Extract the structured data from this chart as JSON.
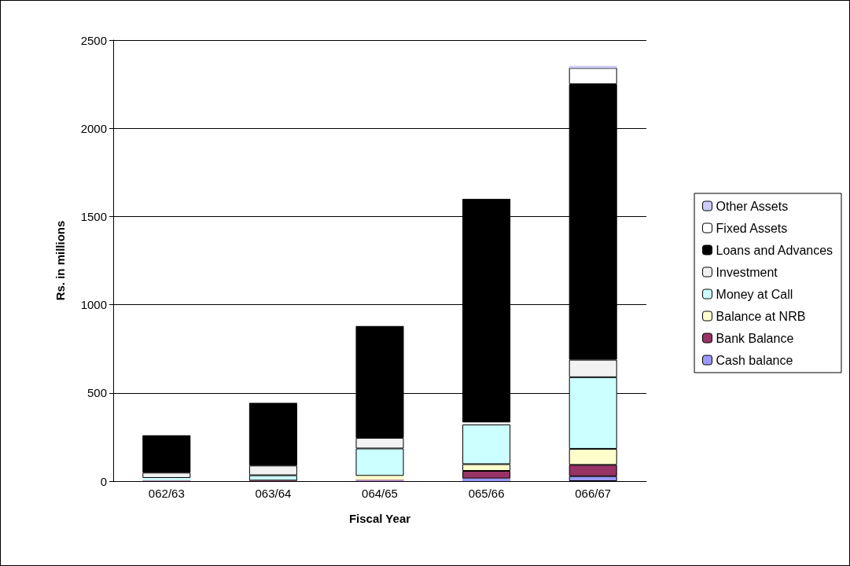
{
  "chart_data": {
    "type": "bar",
    "stacked": true,
    "xlabel": "Fiscal Year",
    "ylabel": "Rs. in millions",
    "categories": [
      "062/63",
      "063/64",
      "064/65",
      "065/66",
      "066/67"
    ],
    "series": [
      {
        "name": "Cash balance",
        "color": "#9999ff",
        "values": [
          null,
          null,
          3,
          15,
          28
        ]
      },
      {
        "name": "Bank Balance",
        "color": "#993366",
        "values": [
          3,
          3,
          5,
          43,
          64
        ]
      },
      {
        "name": "Balance at NRB",
        "color": "#ffffcc",
        "values": [
          null,
          null,
          22,
          38,
          91
        ]
      },
      {
        "name": "Money at Call",
        "color": "#ccffff",
        "values": [
          15,
          30,
          155,
          225,
          406
        ]
      },
      {
        "name": "Investment",
        "color": "#f2f2f2",
        "values": [
          30,
          55,
          60,
          12,
          99
        ]
      },
      {
        "name": "Loans and Advances",
        "color": "#000000",
        "values": [
          213,
          356,
          635,
          1268,
          1562
        ]
      },
      {
        "name": "Fixed Assets",
        "color": "#ffffff",
        "values": [
          2,
          2,
          2,
          10,
          92
        ]
      },
      {
        "name": "Other Assets",
        "color": "#ccccff",
        "values": [
          0,
          0,
          0,
          0,
          12
        ]
      }
    ],
    "ylim": [
      0,
      2500
    ],
    "yticks": [
      0,
      500,
      1000,
      1500,
      2000,
      2500
    ],
    "grid": "y",
    "legend": "right"
  }
}
